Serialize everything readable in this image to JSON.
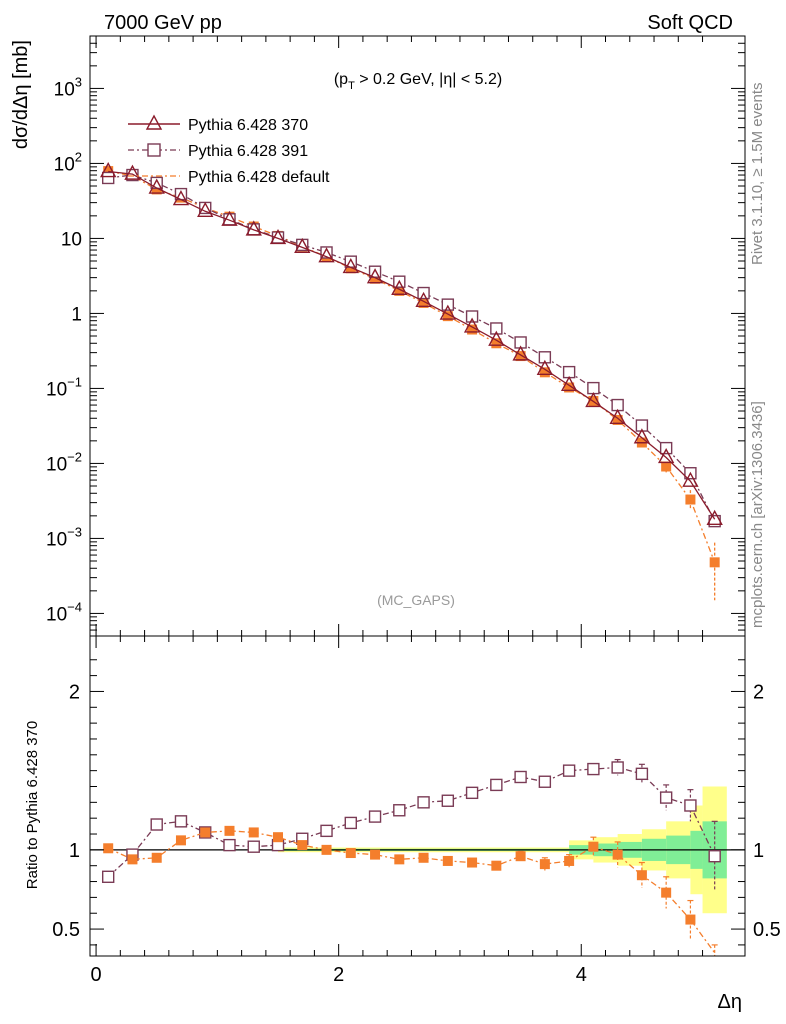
{
  "header": {
    "left": "7000 GeV pp",
    "right": "Soft QCD"
  },
  "side_labels": {
    "rivet": "Rivet 3.1.10, ≥ 1.5M events",
    "mcplots": "mcplots.cern.ch [arXiv:1306.3436]"
  },
  "chart_data": [
    {
      "type": "line",
      "panel": "main",
      "cut_label": "(p_T > 0.2 GeV, |η| < 5.2)",
      "watermark": "(MC_GAPS)",
      "ylabel": "dσ/dΔη [mb]",
      "yscale": "log",
      "ylim": [
        5e-05,
        5000
      ],
      "xlim": [
        -0.05,
        5.35
      ],
      "yticks": [
        {
          "value": 0.0001,
          "base": "10",
          "exp": "−4"
        },
        {
          "value": 0.001,
          "base": "10",
          "exp": "−3"
        },
        {
          "value": 0.01,
          "base": "10",
          "exp": "−2"
        },
        {
          "value": 0.1,
          "base": "10",
          "exp": "−1"
        },
        {
          "value": 1,
          "base": "1",
          "exp": ""
        },
        {
          "value": 10,
          "base": "10",
          "exp": ""
        },
        {
          "value": 100,
          "base": "10",
          "exp": "2"
        },
        {
          "value": 1000,
          "base": "10",
          "exp": "3"
        }
      ],
      "legend_position": "top-left",
      "x": [
        0.1,
        0.3,
        0.5,
        0.7,
        0.9,
        1.1,
        1.3,
        1.5,
        1.7,
        1.9,
        2.1,
        2.3,
        2.5,
        2.7,
        2.9,
        3.1,
        3.3,
        3.5,
        3.7,
        3.9,
        4.1,
        4.3,
        4.5,
        4.7,
        4.9,
        5.1
      ],
      "series": [
        {
          "name": "Pythia 6.428 370",
          "color": "#8b1c2c",
          "marker": "open-triangle",
          "dash": "solid",
          "values": [
            78,
            72,
            47,
            33,
            23,
            17.5,
            13,
            10,
            7.6,
            5.7,
            4.1,
            3.0,
            2.1,
            1.45,
            0.98,
            0.66,
            0.44,
            0.28,
            0.18,
            0.11,
            0.067,
            0.04,
            0.022,
            0.012,
            0.0058,
            0.0018
          ]
        },
        {
          "name": "Pythia 6.428 391",
          "color": "#7a3b55",
          "marker": "open-square",
          "dash": "6,3,2,3",
          "values": [
            64,
            70,
            55,
            39,
            25.5,
            18.0,
            13.2,
            10.3,
            8.2,
            6.5,
            4.9,
            3.6,
            2.65,
            1.87,
            1.31,
            0.91,
            0.63,
            0.41,
            0.26,
            0.165,
            0.101,
            0.06,
            0.032,
            0.016,
            0.0074,
            0.0017
          ]
        },
        {
          "name": "Pythia 6.428 default",
          "color": "#f47e2c",
          "marker": "filled-square",
          "dash": "6,3,2,3",
          "values": [
            79,
            68,
            45,
            35,
            25.5,
            19.5,
            14.4,
            10.8,
            7.8,
            5.7,
            4.0,
            2.9,
            2.0,
            1.38,
            0.92,
            0.61,
            0.4,
            0.27,
            0.164,
            0.103,
            0.068,
            0.038,
            0.019,
            0.0091,
            0.0033,
            0.00048
          ],
          "err_up": [
            0,
            0,
            0,
            0,
            0,
            0,
            0,
            0,
            0,
            0,
            0,
            0,
            0,
            0,
            0,
            0,
            0,
            0,
            0,
            0,
            0,
            0.003,
            0.002,
            0.0015,
            0.0011,
            0.0004
          ],
          "err_down": [
            0,
            0,
            0,
            0,
            0,
            0,
            0,
            0,
            0,
            0,
            0,
            0,
            0,
            0,
            0,
            0,
            0,
            0,
            0,
            0,
            0,
            0.003,
            0.002,
            0.0015,
            0.0008,
            0.00033
          ]
        }
      ]
    },
    {
      "type": "line",
      "panel": "ratio",
      "ylabel": "Ratio to Pythia 6.428 370",
      "xlabel": "Δη",
      "ylim": [
        0.33,
        2.35
      ],
      "xlim": [
        -0.05,
        5.35
      ],
      "xticks": [
        0,
        2,
        4
      ],
      "yticks": [
        0.5,
        1,
        2
      ],
      "bands": {
        "edges": [
          3.9,
          4.1,
          4.3,
          4.5,
          4.7,
          4.9,
          5.0,
          5.2
        ],
        "stat_green_half": [
          0.03,
          0.04,
          0.05,
          0.07,
          0.09,
          0.12,
          0.18,
          0.25
        ],
        "total_yellow_half": [
          0.06,
          0.08,
          0.1,
          0.13,
          0.18,
          0.28,
          0.4,
          0.62
        ]
      },
      "series": [
        {
          "name": "Pythia 6.428 391",
          "color": "#7a3b55",
          "marker": "open-square",
          "values": [
            0.83,
            0.97,
            1.16,
            1.18,
            1.11,
            1.03,
            1.02,
            1.03,
            1.07,
            1.12,
            1.17,
            1.21,
            1.25,
            1.3,
            1.31,
            1.36,
            1.41,
            1.46,
            1.43,
            1.5,
            1.51,
            1.52,
            1.48,
            1.33,
            1.28,
            0.96
          ],
          "err": [
            0,
            0,
            0,
            0,
            0,
            0,
            0,
            0,
            0,
            0,
            0,
            0,
            0,
            0,
            0,
            0,
            0,
            0,
            0,
            0,
            0.03,
            0.05,
            0.06,
            0.08,
            0.1,
            0.22
          ]
        },
        {
          "name": "Pythia 6.428 default",
          "color": "#f47e2c",
          "marker": "filled-square",
          "values": [
            1.01,
            0.94,
            0.95,
            1.06,
            1.11,
            1.12,
            1.11,
            1.08,
            1.03,
            1.0,
            0.98,
            0.97,
            0.94,
            0.95,
            0.93,
            0.92,
            0.9,
            0.96,
            0.91,
            0.93,
            1.02,
            0.97,
            0.84,
            0.73,
            0.56,
            0.3
          ],
          "err": [
            0,
            0,
            0,
            0,
            0,
            0,
            0,
            0,
            0,
            0,
            0,
            0,
            0,
            0,
            0,
            0,
            0,
            0.03,
            0.04,
            0.04,
            0.06,
            0.08,
            0.08,
            0.1,
            0.12,
            0.1
          ]
        }
      ]
    }
  ]
}
